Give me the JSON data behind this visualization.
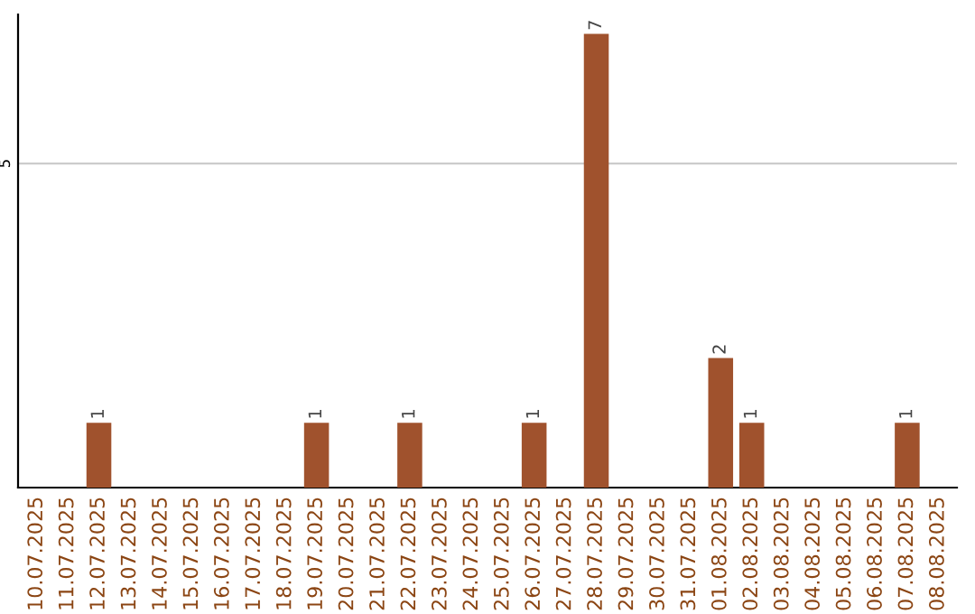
{
  "chart_data": {
    "type": "bar",
    "categories": [
      "10.07.2025",
      "11.07.2025",
      "12.07.2025",
      "13.07.2025",
      "14.07.2025",
      "15.07.2025",
      "16.07.2025",
      "17.07.2025",
      "18.07.2025",
      "19.07.2025",
      "20.07.2025",
      "21.07.2025",
      "22.07.2025",
      "23.07.2025",
      "24.07.2025",
      "25.07.2025",
      "26.07.2025",
      "27.07.2025",
      "28.07.2025",
      "29.07.2025",
      "30.07.2025",
      "31.07.2025",
      "01.08.2025",
      "02.08.2025",
      "03.08.2025",
      "04.08.2025",
      "05.08.2025",
      "06.08.2025",
      "07.08.2025",
      "08.08.2025"
    ],
    "values": [
      0,
      0,
      1,
      0,
      0,
      0,
      0,
      0,
      0,
      1,
      0,
      0,
      1,
      0,
      0,
      0,
      1,
      0,
      7,
      0,
      0,
      0,
      2,
      1,
      0,
      0,
      0,
      0,
      1,
      0
    ],
    "value_labels": [
      null,
      null,
      "1",
      null,
      null,
      null,
      null,
      null,
      null,
      "1",
      null,
      null,
      "1",
      null,
      null,
      null,
      "1",
      null,
      "7",
      null,
      null,
      null,
      "2",
      "1",
      null,
      null,
      null,
      null,
      "1",
      null
    ],
    "color": "#a0522d",
    "ylim": [
      0,
      7.3
    ],
    "yticks": [
      5
    ],
    "grid": "y"
  }
}
